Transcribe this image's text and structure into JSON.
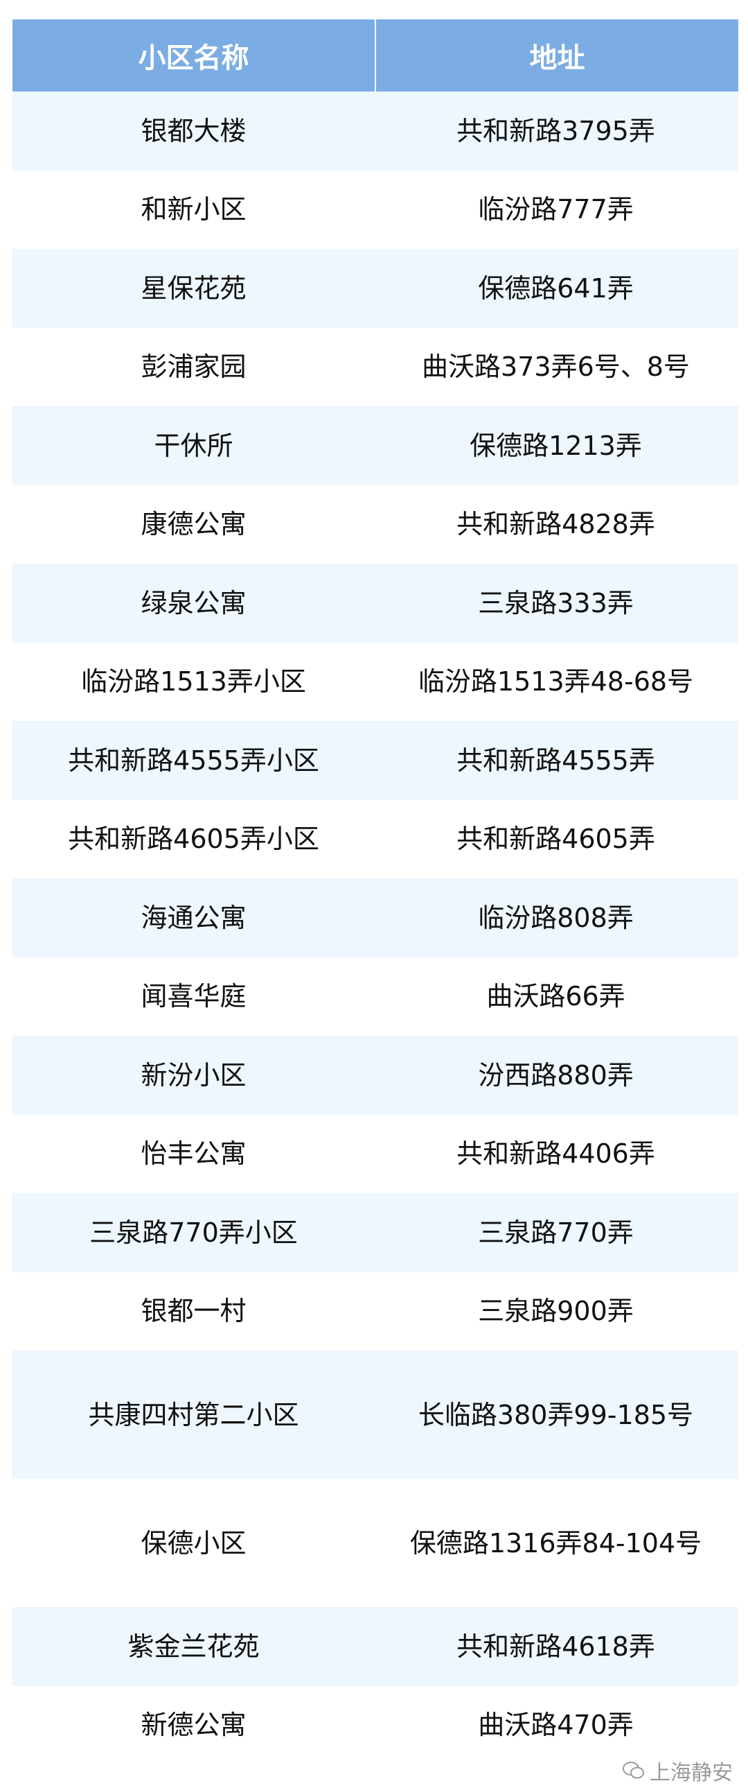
{
  "table": {
    "headers": [
      "小区名称",
      "地址"
    ],
    "rows": [
      {
        "name": "银都大楼",
        "address": "共和新路3795弄"
      },
      {
        "name": "和新小区",
        "address": "临汾路777弄"
      },
      {
        "name": "星保花苑",
        "address": "保德路641弄"
      },
      {
        "name": "彭浦家园",
        "address": "曲沃路373弄6号、8号"
      },
      {
        "name": "干休所",
        "address": "保德路1213弄"
      },
      {
        "name": "康德公寓",
        "address": "共和新路4828弄"
      },
      {
        "name": "绿泉公寓",
        "address": "三泉路333弄"
      },
      {
        "name": "临汾路1513弄小区",
        "address": "临汾路1513弄48-68号"
      },
      {
        "name": "共和新路4555弄小区",
        "address": "共和新路4555弄"
      },
      {
        "name": "共和新路4605弄小区",
        "address": "共和新路4605弄"
      },
      {
        "name": "海通公寓",
        "address": "临汾路808弄"
      },
      {
        "name": "闻喜华庭",
        "address": "曲沃路66弄"
      },
      {
        "name": "新汾小区",
        "address": "汾西路880弄"
      },
      {
        "name": "怡丰公寓",
        "address": "共和新路4406弄"
      },
      {
        "name": "三泉路770弄小区",
        "address": "三泉路770弄"
      },
      {
        "name": "银都一村",
        "address": "三泉路900弄"
      },
      {
        "name": "共康四村第二小区",
        "address": "长临路380弄99-185号"
      },
      {
        "name": "保德小区",
        "address": "保德路1316弄84-104号"
      },
      {
        "name": "紫金兰花苑",
        "address": "共和新路4618弄"
      },
      {
        "name": "新德公寓",
        "address": "曲沃路470弄"
      }
    ]
  },
  "watermark": {
    "text": "上海静安",
    "icon": "wechat-icon"
  },
  "colors": {
    "header_bg": "#7badE4",
    "stripe_bg": "#eef6fe",
    "header_text": "#ffffff"
  }
}
